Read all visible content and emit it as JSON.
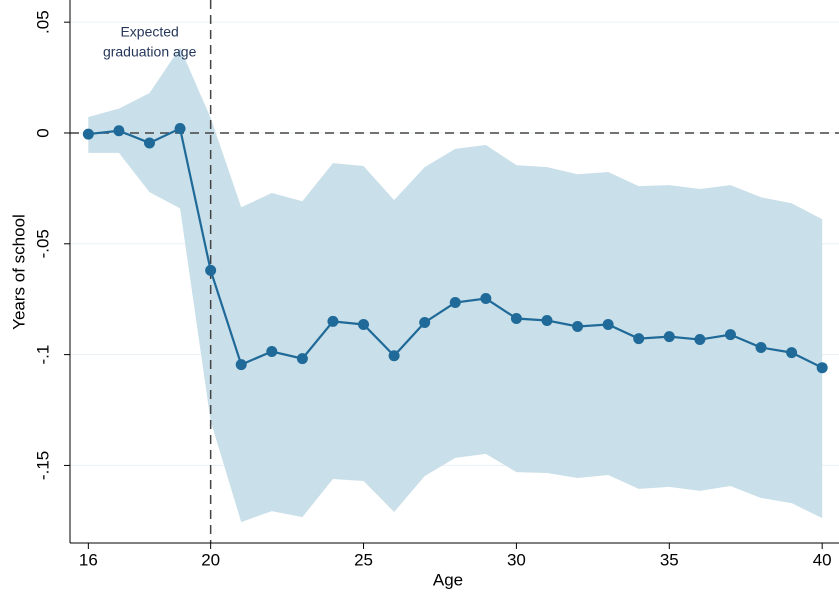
{
  "chart_data": {
    "type": "line",
    "x_label": "Age",
    "y_label": "Years of school",
    "annotation": [
      "Expected",
      "graduation age"
    ],
    "x": [
      16,
      17,
      18,
      19,
      20,
      21,
      22,
      23,
      24,
      25,
      26,
      27,
      28,
      29,
      30,
      31,
      32,
      33,
      34,
      35,
      36,
      37,
      38,
      39,
      40
    ],
    "values": [
      -0.0005,
      0.001,
      -0.0045,
      0.002,
      -0.062,
      -0.1045,
      -0.0986,
      -0.1018,
      -0.085,
      -0.0864,
      -0.1005,
      -0.0855,
      -0.0765,
      -0.0747,
      -0.0837,
      -0.0846,
      -0.0873,
      -0.0864,
      -0.0928,
      -0.0919,
      -0.0932,
      -0.091,
      -0.0968,
      -0.0991,
      -0.1059
    ],
    "ci_upper": [
      0.0072,
      0.011,
      0.018,
      0.0385,
      0.0068,
      -0.0335,
      -0.0271,
      -0.0308,
      -0.0136,
      -0.0149,
      -0.0303,
      -0.0154,
      -0.0072,
      -0.0054,
      -0.0145,
      -0.0154,
      -0.0186,
      -0.0176,
      -0.024,
      -0.0235,
      -0.0253,
      -0.0235,
      -0.029,
      -0.0317,
      -0.0389
    ],
    "ci_lower": [
      -0.009,
      -0.009,
      -0.0267,
      -0.034,
      -0.13,
      -0.1756,
      -0.1706,
      -0.1733,
      -0.1561,
      -0.157,
      -0.171,
      -0.1548,
      -0.1466,
      -0.1448,
      -0.153,
      -0.1534,
      -0.1557,
      -0.1543,
      -0.1606,
      -0.1597,
      -0.1615,
      -0.1593,
      -0.1647,
      -0.167,
      -0.1738
    ],
    "color": "#1f6a98",
    "band_color": "#c9dfe9",
    "xlim": [
      15.4,
      40.55
    ],
    "xticks": [
      16,
      20,
      25,
      30,
      35,
      40
    ],
    "ylim": [
      -0.185,
      0.06
    ],
    "yticks": [
      {
        "value": 0.05,
        "label": ".05"
      },
      0,
      {
        "value": -0.05,
        "label": "-.05"
      },
      {
        "value": -0.1,
        "label": "-.1"
      },
      {
        "value": -0.15,
        "label": "-.15"
      }
    ],
    "grid": true,
    "hline": 0,
    "vline": 20
  }
}
